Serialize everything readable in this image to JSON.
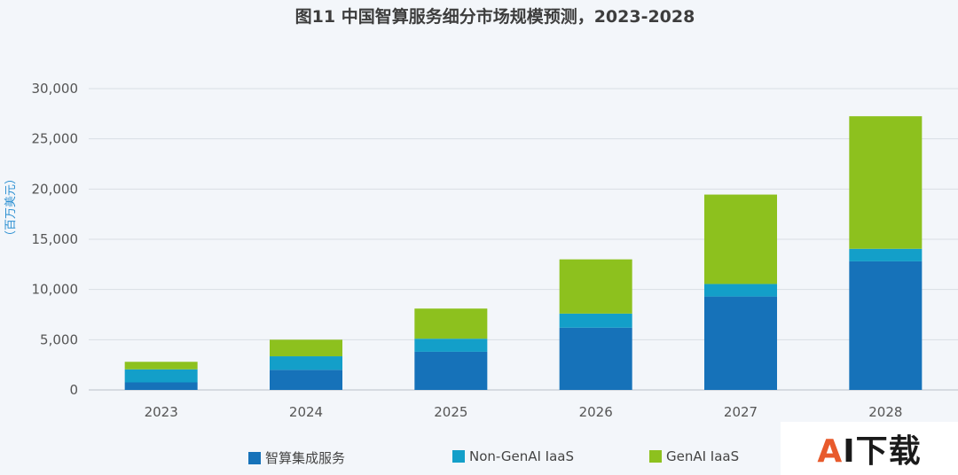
{
  "title": "图11 中国智算服务细分市场规模预测，2023-2028",
  "chart_data": {
    "type": "bar",
    "stacked": true,
    "categories": [
      "2023",
      "2024",
      "2025",
      "2026",
      "2027",
      "2028"
    ],
    "series": [
      {
        "name": "智算集成服务",
        "color": "#1672b9",
        "values": [
          750,
          2000,
          3800,
          6200,
          9300,
          12800
        ]
      },
      {
        "name": "Non-GenAI IaaS",
        "color": "#139fc9",
        "values": [
          1300,
          1350,
          1300,
          1400,
          1250,
          1250
        ]
      },
      {
        "name": "GenAI IaaS",
        "color": "#8dc11e",
        "values": [
          750,
          1650,
          3000,
          5400,
          8900,
          13200
        ]
      }
    ],
    "ylabel": "（百万美元）",
    "ylim": [
      0,
      30000
    ],
    "yticks": [
      0,
      5000,
      10000,
      15000,
      20000,
      25000,
      30000
    ],
    "ytick_labels": [
      "0",
      "5,000",
      "10,000",
      "15,000",
      "20,000",
      "25,000",
      "30,000"
    ],
    "grid": true,
    "legend_position": "bottom"
  },
  "watermark": {
    "accent": "A",
    "rest": "I下载"
  }
}
